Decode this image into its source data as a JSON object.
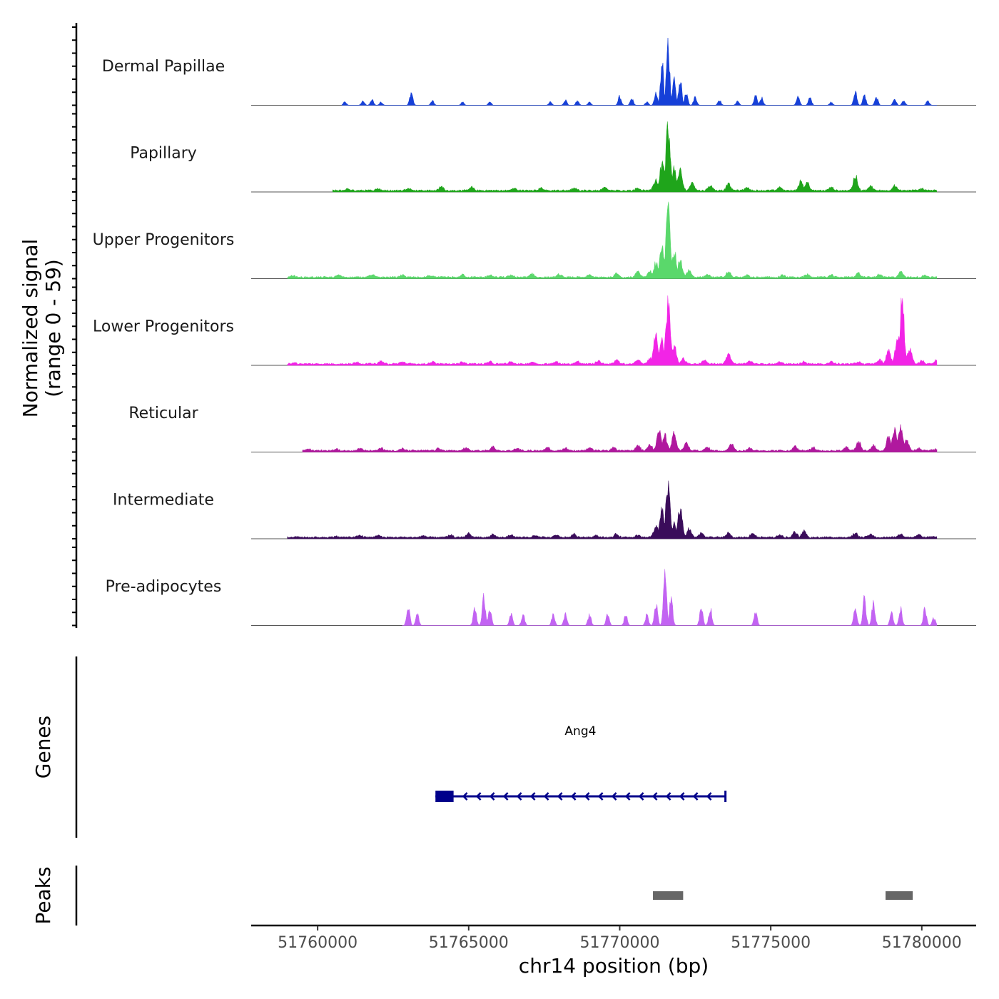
{
  "chart_data": {
    "type": "coverage_tracks",
    "y_axis_title_line1": "Normalized signal",
    "y_axis_title_line2": "(range 0 - 59)",
    "y_range": [
      0,
      59
    ],
    "x_axis_title": "chr14 position (bp)",
    "x_range": [
      51757800,
      51781800
    ],
    "x_ticks": [
      51760000,
      51765000,
      51770000,
      51775000,
      51780000
    ],
    "x_tick_labels": [
      "51760000",
      "51765000",
      "51770000",
      "51775000",
      "51780000"
    ],
    "tracks": [
      {
        "name": "Dermal Papillae",
        "color": "#1640d8",
        "data_extent": [
          51760800,
          51780500
        ],
        "peaks": [
          [
            51760900,
            3
          ],
          [
            51761500,
            4
          ],
          [
            51761800,
            5
          ],
          [
            51762100,
            3
          ],
          [
            51763100,
            12
          ],
          [
            51763800,
            4
          ],
          [
            51764800,
            3
          ],
          [
            51765700,
            3
          ],
          [
            51767700,
            3
          ],
          [
            51768200,
            5
          ],
          [
            51768600,
            4
          ],
          [
            51769000,
            3
          ],
          [
            51770000,
            8
          ],
          [
            51770400,
            6
          ],
          [
            51770900,
            3
          ],
          [
            51771200,
            12
          ],
          [
            51771400,
            38
          ],
          [
            51771600,
            58
          ],
          [
            51771800,
            22
          ],
          [
            51772000,
            24
          ],
          [
            51772200,
            12
          ],
          [
            51772500,
            8
          ],
          [
            51773300,
            5
          ],
          [
            51773900,
            4
          ],
          [
            51774500,
            9
          ],
          [
            51774700,
            7
          ],
          [
            51775900,
            8
          ],
          [
            51776300,
            7
          ],
          [
            51777000,
            3
          ],
          [
            51777800,
            12
          ],
          [
            51778100,
            9
          ],
          [
            51778500,
            7
          ],
          [
            51779100,
            6
          ],
          [
            51779400,
            4
          ],
          [
            51780200,
            4
          ]
        ]
      },
      {
        "name": "Papillary",
        "color": "#1fa51b",
        "data_extent": [
          51760500,
          51780500
        ],
        "peaks": [
          [
            51761000,
            1.5
          ],
          [
            51762000,
            2
          ],
          [
            51763000,
            2.5
          ],
          [
            51764100,
            3.5
          ],
          [
            51765100,
            3
          ],
          [
            51766500,
            2
          ],
          [
            51767400,
            2.5
          ],
          [
            51768500,
            2.5
          ],
          [
            51769500,
            3
          ],
          [
            51770600,
            2.5
          ],
          [
            51771200,
            10
          ],
          [
            51771400,
            25
          ],
          [
            51771600,
            58
          ],
          [
            51771800,
            20
          ],
          [
            51772000,
            18
          ],
          [
            51772400,
            7
          ],
          [
            51773000,
            5
          ],
          [
            51773600,
            6
          ],
          [
            51774200,
            3
          ],
          [
            51775300,
            3
          ],
          [
            51776000,
            9
          ],
          [
            51776200,
            7
          ],
          [
            51777000,
            3
          ],
          [
            51777800,
            13
          ],
          [
            51778300,
            4
          ],
          [
            51779100,
            5
          ],
          [
            51780000,
            2
          ]
        ]
      },
      {
        "name": "Upper Progenitors",
        "color": "#5ad86b",
        "data_extent": [
          51759000,
          51780500
        ],
        "peaks": [
          [
            51759200,
            1.5
          ],
          [
            51760700,
            2
          ],
          [
            51761800,
            2.5
          ],
          [
            51762800,
            2
          ],
          [
            51763700,
            1.5
          ],
          [
            51764800,
            2.5
          ],
          [
            51765700,
            2
          ],
          [
            51766400,
            2
          ],
          [
            51767100,
            3
          ],
          [
            51768000,
            2.5
          ],
          [
            51769000,
            2
          ],
          [
            51769900,
            4
          ],
          [
            51770600,
            5
          ],
          [
            51771000,
            6
          ],
          [
            51771200,
            13
          ],
          [
            51771400,
            30
          ],
          [
            51771600,
            59
          ],
          [
            51771800,
            25
          ],
          [
            51772000,
            15
          ],
          [
            51772300,
            6
          ],
          [
            51772900,
            3
          ],
          [
            51773600,
            5
          ],
          [
            51774200,
            2
          ],
          [
            51775400,
            2
          ],
          [
            51776200,
            2.5
          ],
          [
            51777000,
            2
          ],
          [
            51777900,
            4
          ],
          [
            51778600,
            2.5
          ],
          [
            51779300,
            5
          ],
          [
            51780100,
            2
          ]
        ]
      },
      {
        "name": "Lower Progenitors",
        "color": "#f224e6",
        "data_extent": [
          51759000,
          51780500
        ],
        "peaks": [
          [
            51759200,
            1.2
          ],
          [
            51761300,
            2
          ],
          [
            51762100,
            2.5
          ],
          [
            51762800,
            2
          ],
          [
            51763800,
            2
          ],
          [
            51764800,
            2
          ],
          [
            51765700,
            2
          ],
          [
            51766400,
            2
          ],
          [
            51767100,
            2
          ],
          [
            51767900,
            2
          ],
          [
            51768600,
            2.5
          ],
          [
            51769300,
            3
          ],
          [
            51769900,
            3.5
          ],
          [
            51770600,
            4
          ],
          [
            51771000,
            5
          ],
          [
            51771200,
            30
          ],
          [
            51771400,
            20
          ],
          [
            51771600,
            55
          ],
          [
            51771800,
            18
          ],
          [
            51772100,
            5
          ],
          [
            51772800,
            4
          ],
          [
            51773600,
            9
          ],
          [
            51774300,
            3
          ],
          [
            51775300,
            2
          ],
          [
            51776100,
            2
          ],
          [
            51777000,
            2
          ],
          [
            51777900,
            2
          ],
          [
            51778600,
            4
          ],
          [
            51778900,
            12
          ],
          [
            51779200,
            26
          ],
          [
            51779350,
            57
          ],
          [
            51779600,
            14
          ],
          [
            51780000,
            3
          ],
          [
            51780500,
            4
          ]
        ]
      },
      {
        "name": "Reticular",
        "color": "#b0189e",
        "data_extent": [
          51759500,
          51780500
        ],
        "peaks": [
          [
            51759700,
            1.5
          ],
          [
            51760600,
            1.5
          ],
          [
            51761400,
            2
          ],
          [
            51762100,
            2.5
          ],
          [
            51762800,
            2
          ],
          [
            51764000,
            2
          ],
          [
            51764900,
            2.5
          ],
          [
            51765800,
            3.5
          ],
          [
            51766600,
            2
          ],
          [
            51767600,
            3
          ],
          [
            51768200,
            2.5
          ],
          [
            51769000,
            2.5
          ],
          [
            51769800,
            3
          ],
          [
            51770600,
            5
          ],
          [
            51771000,
            6
          ],
          [
            51771300,
            18
          ],
          [
            51771500,
            14
          ],
          [
            51771800,
            15
          ],
          [
            51772200,
            7
          ],
          [
            51772900,
            3
          ],
          [
            51773700,
            7
          ],
          [
            51774300,
            2.5
          ],
          [
            51775800,
            4
          ],
          [
            51776400,
            3
          ],
          [
            51777500,
            4
          ],
          [
            51777900,
            9
          ],
          [
            51778400,
            5
          ],
          [
            51778900,
            12
          ],
          [
            51779100,
            18
          ],
          [
            51779300,
            23
          ],
          [
            51779500,
            10
          ],
          [
            51779900,
            2
          ],
          [
            51780400,
            1.5
          ]
        ]
      },
      {
        "name": "Intermediate",
        "color": "#3a0c5a",
        "data_extent": [
          51759000,
          51780500
        ],
        "peaks": [
          [
            51759300,
            1
          ],
          [
            51760600,
            1
          ],
          [
            51761400,
            2
          ],
          [
            51762000,
            2
          ],
          [
            51763500,
            1.5
          ],
          [
            51764400,
            2
          ],
          [
            51765000,
            4
          ],
          [
            51765800,
            2.5
          ],
          [
            51766400,
            2.5
          ],
          [
            51767200,
            1.5
          ],
          [
            51767900,
            2
          ],
          [
            51768500,
            3
          ],
          [
            51769200,
            2
          ],
          [
            51769900,
            3
          ],
          [
            51770600,
            2.5
          ],
          [
            51771200,
            10
          ],
          [
            51771400,
            24
          ],
          [
            51771600,
            46
          ],
          [
            51771800,
            12
          ],
          [
            51772000,
            26
          ],
          [
            51772300,
            8
          ],
          [
            51772700,
            4
          ],
          [
            51773600,
            4
          ],
          [
            51774400,
            4
          ],
          [
            51775300,
            2.5
          ],
          [
            51775800,
            5
          ],
          [
            51776100,
            6
          ],
          [
            51777800,
            4
          ],
          [
            51778300,
            3
          ],
          [
            51779300,
            3
          ],
          [
            51779900,
            2.5
          ],
          [
            51780400,
            1
          ]
        ]
      },
      {
        "name": "Pre-adipocytes",
        "color": "#c263f2",
        "data_extent": [
          51762800,
          51780500
        ],
        "peaks": [
          [
            51763000,
            17
          ],
          [
            51763300,
            10
          ],
          [
            51765200,
            16
          ],
          [
            51765500,
            25
          ],
          [
            51765700,
            16
          ],
          [
            51766400,
            10
          ],
          [
            51766800,
            10
          ],
          [
            51767800,
            10
          ],
          [
            51768200,
            10
          ],
          [
            51769000,
            10
          ],
          [
            51769600,
            10
          ],
          [
            51770200,
            10
          ],
          [
            51770900,
            10
          ],
          [
            51771200,
            20
          ],
          [
            51771500,
            48
          ],
          [
            51771700,
            26
          ],
          [
            51772700,
            16
          ],
          [
            51773000,
            16
          ],
          [
            51774500,
            13
          ],
          [
            51777800,
            16
          ],
          [
            51778100,
            24
          ],
          [
            51778400,
            22
          ],
          [
            51779000,
            12
          ],
          [
            51779300,
            15
          ],
          [
            51780100,
            15
          ],
          [
            51780400,
            7
          ]
        ]
      }
    ],
    "genes_track_title": "Genes",
    "genes": [
      {
        "name": "Ang4",
        "strand": "-",
        "start": 51763900,
        "end": 51773500,
        "exons": [
          [
            51763900,
            51764500
          ]
        ],
        "color": "#00008b"
      }
    ],
    "peaks_track_title": "Peaks",
    "peak_regions": [
      [
        51771100,
        51772100
      ],
      [
        51778800,
        51779700
      ]
    ],
    "peak_color": "#666666"
  }
}
